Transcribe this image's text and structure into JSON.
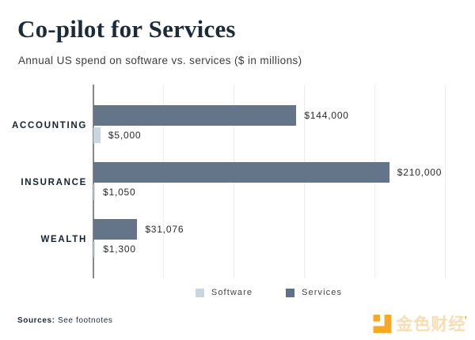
{
  "chart_data": {
    "type": "bar",
    "orientation": "horizontal",
    "title": "Co-pilot for Services",
    "subtitle": "Annual US spend on software vs. services ($ in millions)",
    "categories": [
      "ACCOUNTING",
      "INSURANCE",
      "WEALTH"
    ],
    "series": [
      {
        "name": "Services",
        "color": "#64758a",
        "values": [
          144000,
          210000,
          31076
        ],
        "labels": [
          "$144,000",
          "$210,000",
          "$31,076"
        ]
      },
      {
        "name": "Software",
        "color": "#c9d6de",
        "values": [
          5000,
          1050,
          1300
        ],
        "labels": [
          "$5,000",
          "$1,050",
          "$1,300"
        ]
      }
    ],
    "xlim": [
      0,
      250000
    ],
    "gridlines": [
      50000,
      100000,
      150000,
      200000,
      250000
    ],
    "grid": true,
    "legend_position": "bottom-center",
    "legend": {
      "items": [
        {
          "label": "Software",
          "color": "#c9d6de"
        },
        {
          "label": "Services",
          "color": "#5f7188"
        }
      ]
    }
  },
  "footer": {
    "sources_label": "Sources:",
    "sources_text": "See footnotes",
    "logo_text": "金色财经",
    "logo_accent": "’",
    "logo_color": "#f7a825"
  }
}
